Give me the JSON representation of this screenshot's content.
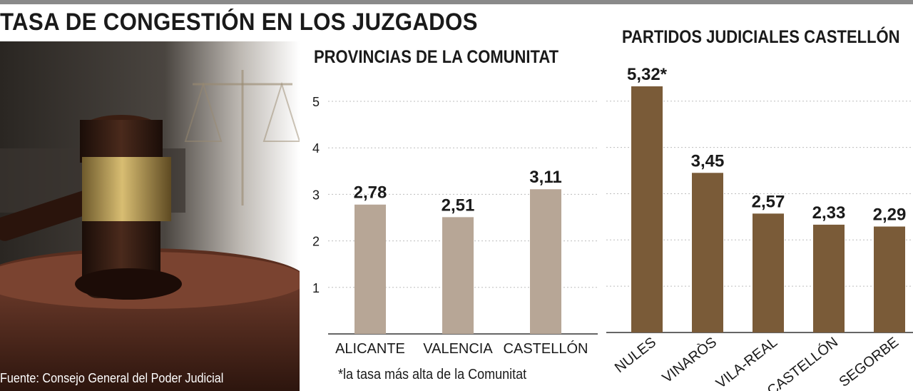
{
  "header": {
    "title": "TASA DE CONGESTIÓN EN LOS JUZGADOS"
  },
  "photo": {
    "source": "Fuente: Consejo General del Poder Judicial"
  },
  "colors": {
    "provincias_bar": "#b7a696",
    "partidos_bar": "#7a5b38",
    "grid": "#bdbdbd",
    "text": "#1a1a1a"
  },
  "chart_data": [
    {
      "type": "bar",
      "title": "PROVINCIAS DE LA COMUNITAT",
      "categories": [
        "ALICANTE",
        "VALENCIA",
        "CASTELLÓN"
      ],
      "values": [
        2.78,
        2.51,
        3.11
      ],
      "labels": [
        "2,78",
        "2,51",
        "3,11"
      ],
      "yticks": [
        1,
        2,
        3,
        4,
        5
      ],
      "ylim": [
        0,
        5.0
      ],
      "grid": true,
      "footnote": "*la tasa más alta de la Comunitat"
    },
    {
      "type": "bar",
      "title": "PARTIDOS JUDICIALES CASTELLÓN",
      "categories": [
        "NULES",
        "VINARÒS",
        "VILA-REAL",
        "CASTELLÓN",
        "SEGORBE"
      ],
      "values": [
        5.32,
        3.45,
        2.57,
        2.33,
        2.29
      ],
      "labels": [
        "5,32*",
        "3,45",
        "2,57",
        "2,33",
        "2,29"
      ],
      "ylim": [
        0,
        5.32
      ],
      "grid": true
    }
  ]
}
